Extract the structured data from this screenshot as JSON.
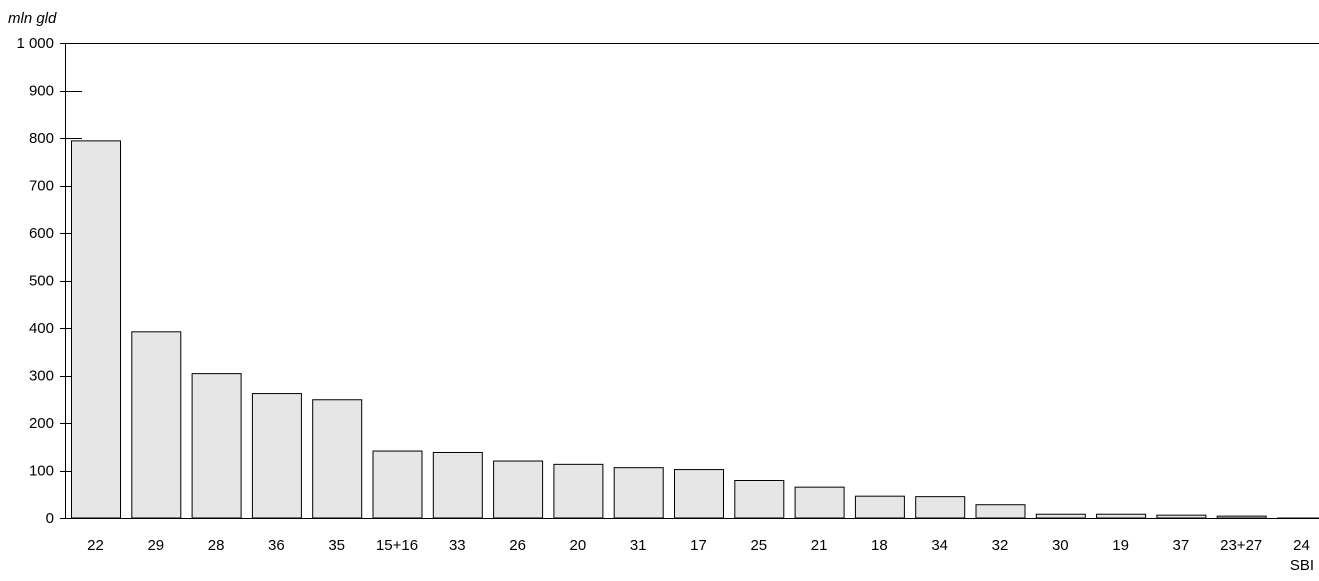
{
  "chart_data": {
    "type": "bar",
    "ylabel": "mln gld",
    "xlabel": "SBI",
    "ylim": [
      0,
      1000
    ],
    "yticks": [
      0,
      100,
      200,
      300,
      400,
      500,
      600,
      700,
      800,
      900,
      1000
    ],
    "ytick_labels": [
      "0",
      "100",
      "200",
      "300",
      "400",
      "500",
      "600",
      "700",
      "800",
      "900",
      "1 000"
    ],
    "grid": false,
    "categories": [
      "22",
      "29",
      "28",
      "36",
      "35",
      "15+16",
      "33",
      "26",
      "20",
      "31",
      "17",
      "25",
      "21",
      "18",
      "34",
      "32",
      "30",
      "19",
      "37",
      "23+27",
      "24"
    ],
    "values": [
      795,
      393,
      305,
      263,
      250,
      142,
      139,
      121,
      114,
      107,
      103,
      80,
      66,
      47,
      46,
      29,
      9,
      9,
      7,
      5,
      1
    ],
    "colors": {
      "bar_fill": "#e6e6e6",
      "bar_stroke": "#000000",
      "axis": "#000000"
    }
  }
}
